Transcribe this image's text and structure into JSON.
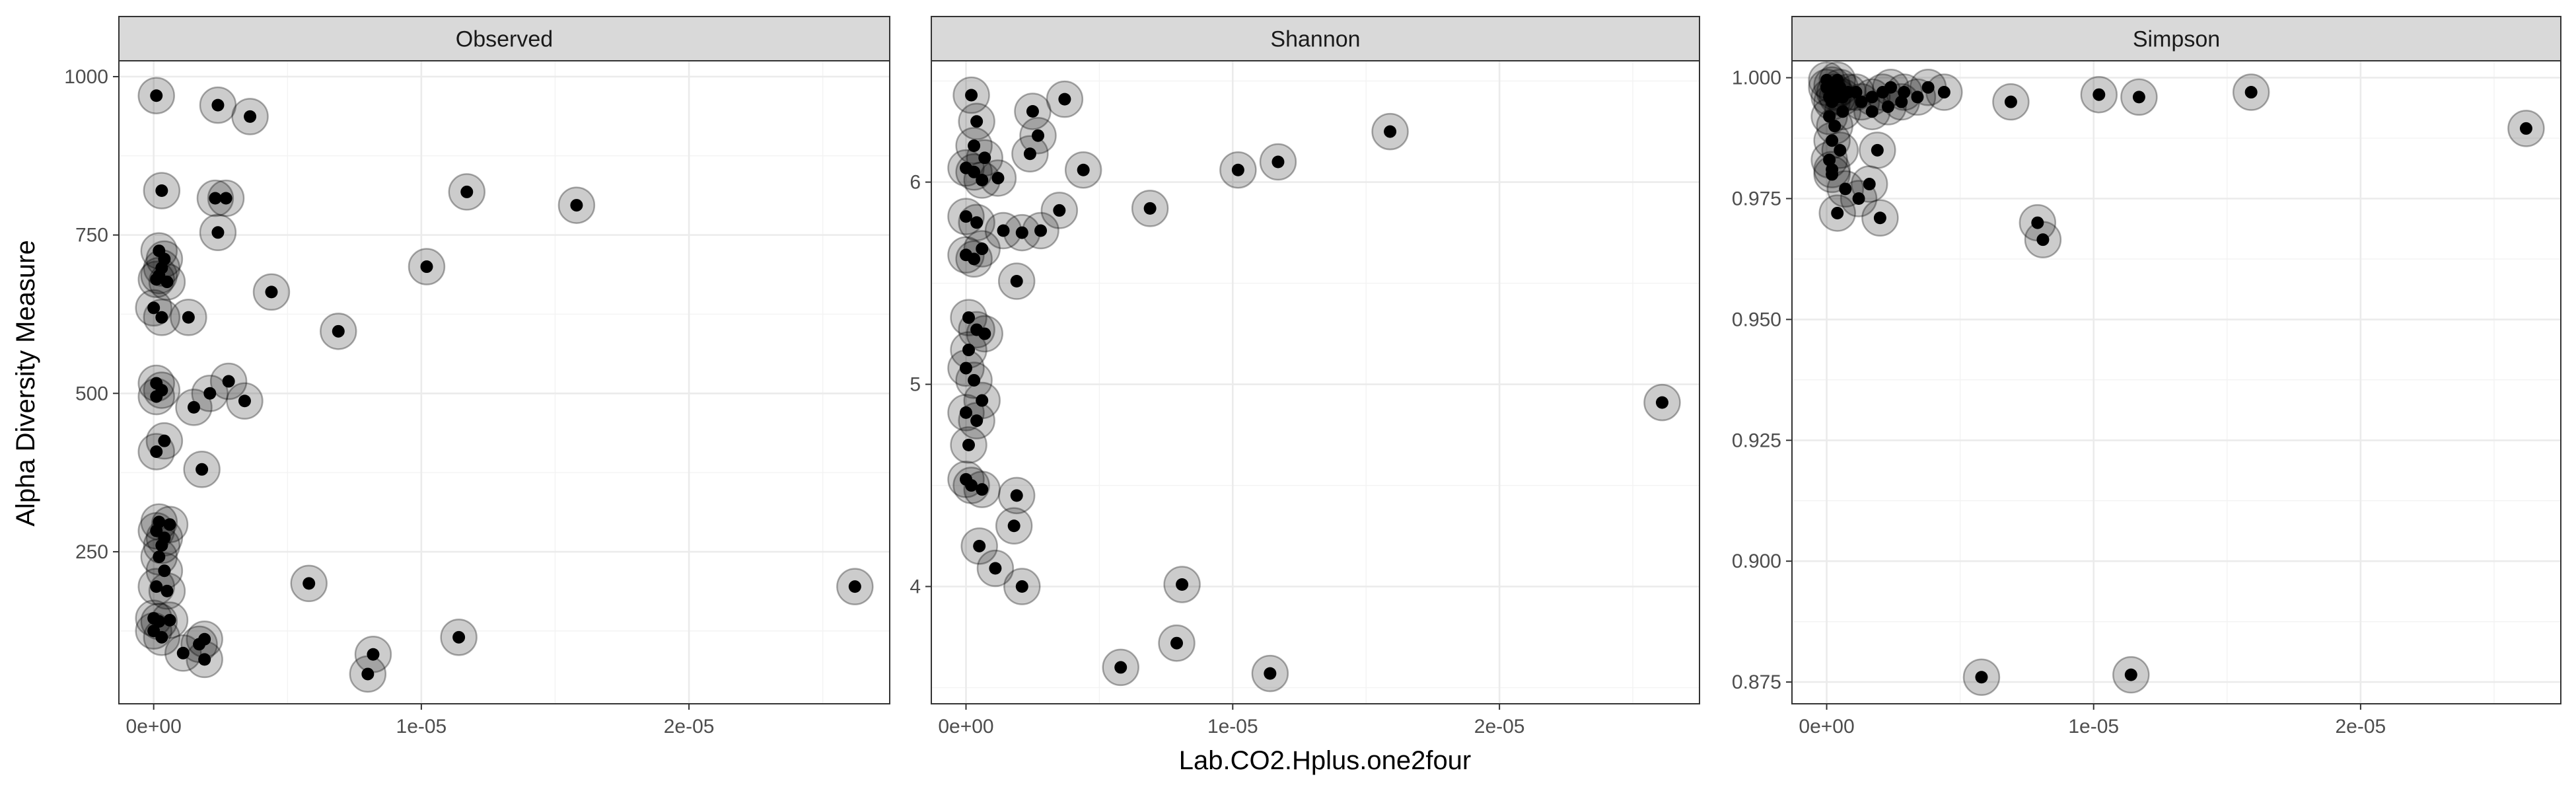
{
  "chart_data": {
    "type": "scatter",
    "xlabel": "Lab.CO2.Hplus.one2four",
    "ylabel": "Alpha Diversity Measure",
    "x_tick_labels": [
      "0e+00",
      "1e-05",
      "2e-05"
    ],
    "x_ticks": [
      0,
      1e-05,
      2e-05
    ],
    "xlim": [
      -1.3e-06,
      2.75e-05
    ],
    "grid": true,
    "panels": [
      {
        "strip": "Observed",
        "ylim": [
          10,
          1025
        ],
        "y_ticks": [
          250,
          500,
          750,
          1000
        ],
        "y_tick_labels": [
          "250",
          "500",
          "750",
          "1000"
        ],
        "points": [
          [
            1e-07,
            970
          ],
          [
            2.4e-06,
            955
          ],
          [
            3.6e-06,
            937
          ],
          [
            3e-07,
            820
          ],
          [
            2.3e-06,
            808
          ],
          [
            2.7e-06,
            808
          ],
          [
            1.17e-05,
            818
          ],
          [
            1.58e-05,
            797
          ],
          [
            2.4e-06,
            754
          ],
          [
            1.02e-05,
            700
          ],
          [
            4.4e-06,
            660
          ],
          [
            6.9e-06,
            598
          ],
          [
            2e-07,
            725
          ],
          [
            4e-07,
            712
          ],
          [
            3e-07,
            698
          ],
          [
            2e-07,
            686
          ],
          [
            1e-07,
            680
          ],
          [
            5e-07,
            676
          ],
          [
            0.0,
            635
          ],
          [
            3e-07,
            620
          ],
          [
            1.3e-06,
            620
          ],
          [
            1e-07,
            516
          ],
          [
            3e-07,
            505
          ],
          [
            1e-07,
            495
          ],
          [
            2.8e-06,
            519
          ],
          [
            3.4e-06,
            488
          ],
          [
            2.1e-06,
            500
          ],
          [
            1.5e-06,
            478
          ],
          [
            4e-07,
            425
          ],
          [
            1e-07,
            408
          ],
          [
            1.8e-06,
            380
          ],
          [
            2e-07,
            297
          ],
          [
            6e-07,
            293
          ],
          [
            1e-07,
            283
          ],
          [
            4e-07,
            272
          ],
          [
            3e-07,
            260
          ],
          [
            2e-07,
            242
          ],
          [
            4e-07,
            220
          ],
          [
            1e-07,
            195
          ],
          [
            5e-07,
            188
          ],
          [
            5.8e-06,
            200
          ],
          [
            2.62e-05,
            195
          ],
          [
            0.0,
            145
          ],
          [
            2e-07,
            140
          ],
          [
            6e-07,
            142
          ],
          [
            0.0,
            125
          ],
          [
            3e-07,
            115
          ],
          [
            1.1e-06,
            90
          ],
          [
            1.7e-06,
            104
          ],
          [
            1.9e-06,
            112
          ],
          [
            1.9e-06,
            80
          ],
          [
            8.2e-06,
            88
          ],
          [
            8e-06,
            57
          ],
          [
            1.14e-05,
            115
          ]
        ]
      },
      {
        "strip": "Shannon",
        "ylim": [
          3.42,
          6.6
        ],
        "y_ticks": [
          4,
          5,
          6
        ],
        "y_tick_labels": [
          "4",
          "5",
          "6"
        ],
        "points": [
          [
            2e-07,
            6.43
          ],
          [
            4e-07,
            6.3
          ],
          [
            2.5e-06,
            6.35
          ],
          [
            3.7e-06,
            6.41
          ],
          [
            2.7e-06,
            6.23
          ],
          [
            2.4e-06,
            6.14
          ],
          [
            1.59e-05,
            6.25
          ],
          [
            1.17e-05,
            6.1
          ],
          [
            1.02e-05,
            6.06
          ],
          [
            4.4e-06,
            6.06
          ],
          [
            3e-07,
            6.18
          ],
          [
            7e-07,
            6.12
          ],
          [
            0.0,
            6.07
          ],
          [
            3e-07,
            6.05
          ],
          [
            6e-07,
            6.01
          ],
          [
            1.2e-06,
            6.02
          ],
          [
            6.9e-06,
            5.87
          ],
          [
            3.5e-06,
            5.86
          ],
          [
            0.0,
            5.83
          ],
          [
            4e-07,
            5.8
          ],
          [
            1.4e-06,
            5.76
          ],
          [
            2.1e-06,
            5.75
          ],
          [
            2.8e-06,
            5.76
          ],
          [
            0.0,
            5.64
          ],
          [
            3e-07,
            5.62
          ],
          [
            6e-07,
            5.67
          ],
          [
            1.9e-06,
            5.51
          ],
          [
            1e-07,
            5.33
          ],
          [
            4e-07,
            5.27
          ],
          [
            7e-07,
            5.25
          ],
          [
            1e-07,
            5.17
          ],
          [
            0.0,
            5.08
          ],
          [
            3e-07,
            5.02
          ],
          [
            6e-07,
            4.92
          ],
          [
            0.0,
            4.86
          ],
          [
            4e-07,
            4.82
          ],
          [
            1e-07,
            4.7
          ],
          [
            0.0,
            4.53
          ],
          [
            2e-07,
            4.5
          ],
          [
            6e-07,
            4.48
          ],
          [
            1.9e-06,
            4.45
          ],
          [
            1.8e-06,
            4.3
          ],
          [
            5e-07,
            4.2
          ],
          [
            1.1e-06,
            4.09
          ],
          [
            2.1e-06,
            4.0
          ],
          [
            8.1e-06,
            4.01
          ],
          [
            7.9e-06,
            3.72
          ],
          [
            5.8e-06,
            3.6
          ],
          [
            1.14e-05,
            3.57
          ],
          [
            2.61e-05,
            4.91
          ]
        ]
      },
      {
        "strip": "Simpson",
        "ylim": [
          0.8705,
          1.0035
        ],
        "y_ticks": [
          0.875,
          0.9,
          0.925,
          0.95,
          0.975,
          1.0
        ],
        "y_tick_labels": [
          "0.875",
          "0.900",
          "0.925",
          "0.950",
          "0.975",
          "1.000"
        ],
        "points": [
          [
            0.0,
            0.998
          ],
          [
            1e-07,
            0.996
          ],
          [
            2e-07,
            0.995
          ],
          [
            3e-07,
            0.997
          ],
          [
            4e-07,
            0.996
          ],
          [
            5e-07,
            0.998
          ],
          [
            6e-07,
            0.996
          ],
          [
            8e-07,
            0.997
          ],
          [
            1.1e-06,
            0.997
          ],
          [
            1.3e-06,
            0.995
          ],
          [
            1.7e-06,
            0.996
          ],
          [
            2.1e-06,
            0.997
          ],
          [
            2.4e-06,
            0.998
          ],
          [
            2.9e-06,
            0.997
          ],
          [
            3.4e-06,
            0.996
          ],
          [
            3.8e-06,
            0.998
          ],
          [
            4.4e-06,
            0.997
          ],
          [
            1e-07,
            0.992
          ],
          [
            3e-07,
            0.99
          ],
          [
            6e-07,
            0.993
          ],
          [
            2e-07,
            0.987
          ],
          [
            5e-07,
            0.985
          ],
          [
            1e-07,
            0.983
          ],
          [
            2e-07,
            0.981
          ],
          [
            1.7e-06,
            0.993
          ],
          [
            2.3e-06,
            0.994
          ],
          [
            2.8e-06,
            0.995
          ],
          [
            1.9e-06,
            0.985
          ],
          [
            1.6e-06,
            0.978
          ],
          [
            2e-07,
            0.98
          ],
          [
            7e-07,
            0.977
          ],
          [
            1.2e-06,
            0.975
          ],
          [
            4e-07,
            0.972
          ],
          [
            2e-06,
            0.971
          ],
          [
            6.9e-06,
            0.995
          ],
          [
            1.02e-05,
            0.9965
          ],
          [
            1.17e-05,
            0.996
          ],
          [
            1.59e-05,
            0.997
          ],
          [
            2.62e-05,
            0.9895
          ],
          [
            7.9e-06,
            0.97
          ],
          [
            8.1e-06,
            0.9665
          ],
          [
            5.8e-06,
            0.876
          ],
          [
            1.14e-05,
            0.8765
          ],
          [
            0.0,
            0.9995
          ],
          [
            2e-07,
            0.9985
          ],
          [
            4e-07,
            0.9995
          ]
        ]
      }
    ]
  }
}
